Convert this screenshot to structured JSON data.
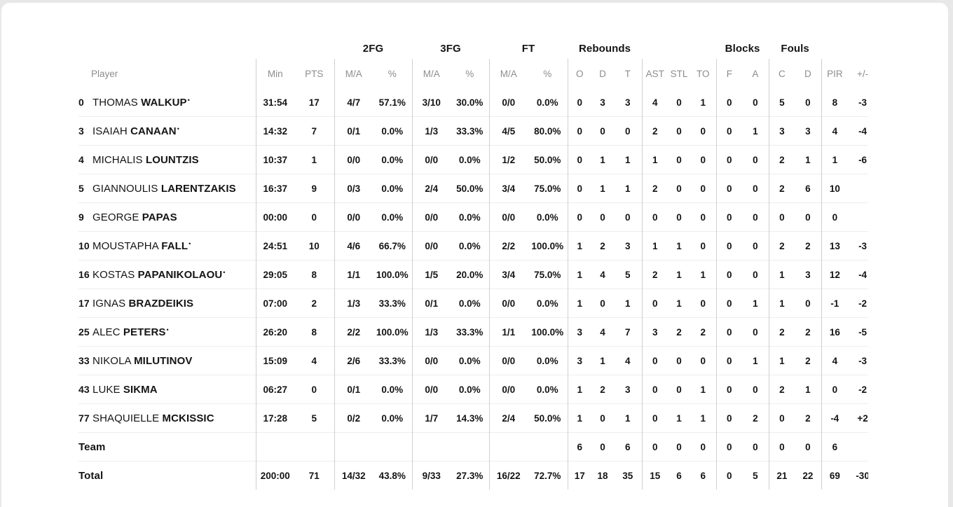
{
  "table": {
    "group_headers": [
      "2FG",
      "3FG",
      "FT",
      "Rebounds",
      "Blocks",
      "Fouls"
    ],
    "column_headers": [
      "Player",
      "Min",
      "PTS",
      "M/A",
      "%",
      "M/A",
      "%",
      "M/A",
      "%",
      "O",
      "D",
      "T",
      "AST",
      "STL",
      "TO",
      "F",
      "A",
      "C",
      "D",
      "PIR",
      "+/-"
    ],
    "starter_marker": "•",
    "players": [
      {
        "num": "0",
        "first": "THOMAS",
        "last": "WALKUP",
        "starter": true,
        "stats": [
          "31:54",
          "17",
          "4/7",
          "57.1%",
          "3/10",
          "30.0%",
          "0/0",
          "0.0%",
          "0",
          "3",
          "3",
          "4",
          "0",
          "1",
          "0",
          "0",
          "5",
          "0",
          "8",
          "-3"
        ]
      },
      {
        "num": "3",
        "first": "ISAIAH",
        "last": "CANAAN",
        "starter": true,
        "stats": [
          "14:32",
          "7",
          "0/1",
          "0.0%",
          "1/3",
          "33.3%",
          "4/5",
          "80.0%",
          "0",
          "0",
          "0",
          "2",
          "0",
          "0",
          "0",
          "1",
          "3",
          "3",
          "4",
          "-4"
        ]
      },
      {
        "num": "4",
        "first": "MICHALIS",
        "last": "LOUNTZIS",
        "starter": false,
        "stats": [
          "10:37",
          "1",
          "0/0",
          "0.0%",
          "0/0",
          "0.0%",
          "1/2",
          "50.0%",
          "0",
          "1",
          "1",
          "1",
          "0",
          "0",
          "0",
          "0",
          "2",
          "1",
          "1",
          "-6"
        ]
      },
      {
        "num": "5",
        "first": "GIANNOULIS",
        "last": "LARENTZAKIS",
        "starter": false,
        "stats": [
          "16:37",
          "9",
          "0/3",
          "0.0%",
          "2/4",
          "50.0%",
          "3/4",
          "75.0%",
          "0",
          "1",
          "1",
          "2",
          "0",
          "0",
          "0",
          "0",
          "2",
          "6",
          "10",
          ""
        ]
      },
      {
        "num": "9",
        "first": "GEORGE",
        "last": "PAPAS",
        "starter": false,
        "stats": [
          "00:00",
          "0",
          "0/0",
          "0.0%",
          "0/0",
          "0.0%",
          "0/0",
          "0.0%",
          "0",
          "0",
          "0",
          "0",
          "0",
          "0",
          "0",
          "0",
          "0",
          "0",
          "0",
          ""
        ]
      },
      {
        "num": "10",
        "first": "MOUSTAPHA",
        "last": "FALL",
        "starter": true,
        "stats": [
          "24:51",
          "10",
          "4/6",
          "66.7%",
          "0/0",
          "0.0%",
          "2/2",
          "100.0%",
          "1",
          "2",
          "3",
          "1",
          "1",
          "0",
          "0",
          "0",
          "2",
          "2",
          "13",
          "-3"
        ]
      },
      {
        "num": "16",
        "first": "KOSTAS",
        "last": "PAPANIKOLAOU",
        "starter": true,
        "stats": [
          "29:05",
          "8",
          "1/1",
          "100.0%",
          "1/5",
          "20.0%",
          "3/4",
          "75.0%",
          "1",
          "4",
          "5",
          "2",
          "1",
          "1",
          "0",
          "0",
          "1",
          "3",
          "12",
          "-4"
        ]
      },
      {
        "num": "17",
        "first": "IGNAS",
        "last": "BRAZDEIKIS",
        "starter": false,
        "stats": [
          "07:00",
          "2",
          "1/3",
          "33.3%",
          "0/1",
          "0.0%",
          "0/0",
          "0.0%",
          "1",
          "0",
          "1",
          "0",
          "1",
          "0",
          "0",
          "1",
          "1",
          "0",
          "-1",
          "-2"
        ]
      },
      {
        "num": "25",
        "first": "ALEC",
        "last": "PETERS",
        "starter": true,
        "stats": [
          "26:20",
          "8",
          "2/2",
          "100.0%",
          "1/3",
          "33.3%",
          "1/1",
          "100.0%",
          "3",
          "4",
          "7",
          "3",
          "2",
          "2",
          "0",
          "0",
          "2",
          "2",
          "16",
          "-5"
        ]
      },
      {
        "num": "33",
        "first": "NIKOLA",
        "last": "MILUTINOV",
        "starter": false,
        "stats": [
          "15:09",
          "4",
          "2/6",
          "33.3%",
          "0/0",
          "0.0%",
          "0/0",
          "0.0%",
          "3",
          "1",
          "4",
          "0",
          "0",
          "0",
          "0",
          "1",
          "1",
          "2",
          "4",
          "-3"
        ]
      },
      {
        "num": "43",
        "first": "LUKE",
        "last": "SIKMA",
        "starter": false,
        "stats": [
          "06:27",
          "0",
          "0/1",
          "0.0%",
          "0/0",
          "0.0%",
          "0/0",
          "0.0%",
          "1",
          "2",
          "3",
          "0",
          "0",
          "1",
          "0",
          "0",
          "2",
          "1",
          "0",
          "-2"
        ]
      },
      {
        "num": "77",
        "first": "SHAQUIELLE",
        "last": "MCKISSIC",
        "starter": false,
        "stats": [
          "17:28",
          "5",
          "0/2",
          "0.0%",
          "1/7",
          "14.3%",
          "2/4",
          "50.0%",
          "1",
          "0",
          "1",
          "0",
          "1",
          "1",
          "0",
          "2",
          "0",
          "2",
          "-4",
          "+2"
        ]
      }
    ],
    "team_row": {
      "label": "Team",
      "stats": [
        "",
        "",
        "",
        "",
        "",
        "",
        "",
        "",
        "6",
        "0",
        "6",
        "0",
        "0",
        "0",
        "0",
        "0",
        "0",
        "0",
        "6",
        ""
      ]
    },
    "total_row": {
      "label": "Total",
      "stats": [
        "200:00",
        "71",
        "14/32",
        "43.8%",
        "9/33",
        "27.3%",
        "16/22",
        "72.7%",
        "17",
        "18",
        "35",
        "15",
        "6",
        "6",
        "0",
        "5",
        "21",
        "22",
        "69",
        "-30"
      ]
    }
  },
  "colors": {
    "page_background": "#e8e8e8",
    "card_background": "#ffffff",
    "header_text": "#8d8d8d",
    "body_text": "#141414",
    "vertical_rule": "#cfcfcf",
    "row_rule": "#ededed"
  }
}
